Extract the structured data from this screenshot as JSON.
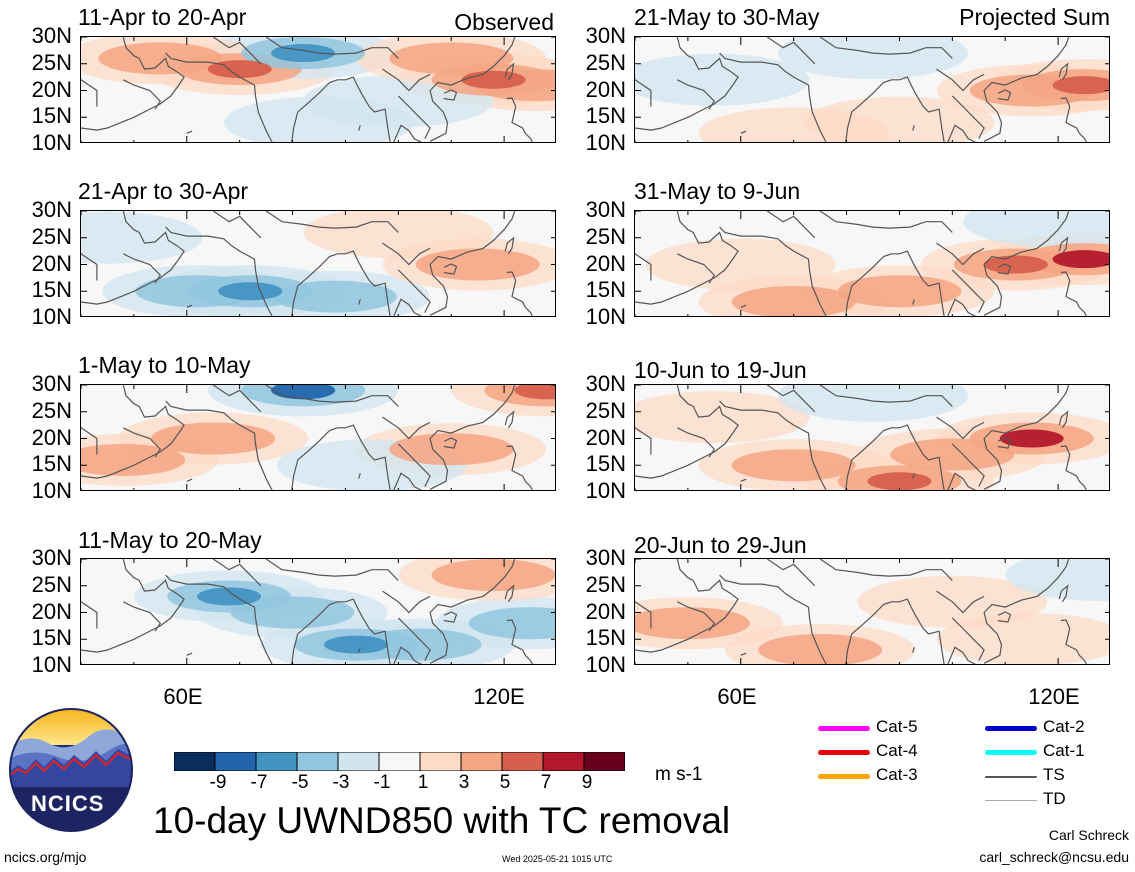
{
  "header": {
    "left_tag": "Observed",
    "right_tag": "Projected Sum"
  },
  "lat_labels": [
    "30N",
    "25N",
    "20N",
    "15N",
    "10N"
  ],
  "lon_labels": [
    "60E",
    "120E"
  ],
  "palette": {
    "-10": "#0a2d5e",
    "-8": "#2166ac",
    "-6": "#4393c3",
    "-4": "#92c5de",
    "-2": "#d1e5f0",
    "0": "#f7f7f7",
    "2": "#fddbc7",
    "4": "#f4a582",
    "6": "#d6604d",
    "8": "#b2182b",
    "10": "#67001f",
    "coast": "#555555"
  },
  "panels": [
    {
      "title": "11-Apr to 20-Apr",
      "column": "observed"
    },
    {
      "title": "21-Apr to 30-Apr",
      "column": "observed"
    },
    {
      "title": "1-May to 10-May",
      "column": "observed"
    },
    {
      "title": "11-May to 20-May",
      "column": "observed"
    },
    {
      "title": "21-May to 30-May",
      "column": "projected"
    },
    {
      "title": "31-May to 9-Jun",
      "column": "projected"
    },
    {
      "title": "10-Jun to 19-Jun",
      "column": "projected"
    },
    {
      "title": "20-Jun to 29-Jun",
      "column": "projected"
    }
  ],
  "colorbar": {
    "labels": [
      "-9",
      "-7",
      "-5",
      "-3",
      "-1",
      "1",
      "3",
      "5",
      "7",
      "9"
    ],
    "colors": [
      "#0a2d5e",
      "#2166ac",
      "#4393c3",
      "#92c5de",
      "#d1e5f0",
      "#f7f7f7",
      "#fddbc7",
      "#f4a582",
      "#d6604d",
      "#b2182b",
      "#67001f"
    ],
    "units": "m s-1"
  },
  "title": "10-day UWND850 with TC removal",
  "legend": {
    "items": [
      {
        "label": "Cat-5",
        "color": "#ff00ff"
      },
      {
        "label": "Cat-4",
        "color": "#e8000b"
      },
      {
        "label": "Cat-3",
        "color": "#ffa500"
      },
      {
        "label": "Cat-2",
        "color": "#0000cd"
      },
      {
        "label": "Cat-1",
        "color": "#00ffff"
      },
      {
        "label": "TS",
        "color": "#555555"
      },
      {
        "label": "TD",
        "color": "#aaaaaa"
      }
    ]
  },
  "logo": {
    "text": "NCICS"
  },
  "footer": {
    "left": "ncics.org/mjo",
    "center": "Wed 2025-05-21 1015 UTC",
    "author": "Carl Schreck",
    "email": "carl_schreck@ncsu.edu"
  },
  "chart_data": {
    "type": "heatmap",
    "title": "10-day UWND850 with TC removal",
    "xlabel": "",
    "ylabel": "",
    "xlim": [
      40,
      130
    ],
    "ylim": [
      10,
      30
    ],
    "x_ticks": [
      "60E",
      "120E"
    ],
    "y_ticks": [
      "30N",
      "25N",
      "20N",
      "15N",
      "10N"
    ],
    "units": "m s-1",
    "levels": [
      -9,
      -7,
      -5,
      -3,
      -1,
      1,
      3,
      5,
      7,
      9
    ],
    "panels": [
      {
        "title": "11-Apr to 20-Apr",
        "features": [
          {
            "lon": 70,
            "lat": 24,
            "value": 5
          },
          {
            "lon": 82,
            "lat": 27,
            "value": -5
          },
          {
            "lon": 118,
            "lat": 22,
            "value": 5
          },
          {
            "lon": 126,
            "lat": 21,
            "value": 3
          },
          {
            "lon": 85,
            "lat": 14,
            "value": -1
          },
          {
            "lon": 55,
            "lat": 26,
            "value": 3
          },
          {
            "lon": 100,
            "lat": 18,
            "value": -1
          },
          {
            "lon": 110,
            "lat": 26,
            "value": 3
          }
        ]
      },
      {
        "title": "21-Apr to 30-Apr",
        "features": [
          {
            "lon": 62,
            "lat": 15,
            "value": -3
          },
          {
            "lon": 72,
            "lat": 15,
            "value": -5
          },
          {
            "lon": 88,
            "lat": 14,
            "value": -3
          },
          {
            "lon": 115,
            "lat": 20,
            "value": 3
          },
          {
            "lon": 45,
            "lat": 25,
            "value": -1
          },
          {
            "lon": 100,
            "lat": 26,
            "value": 1
          }
        ]
      },
      {
        "title": "1-May to 10-May",
        "features": [
          {
            "lon": 82,
            "lat": 29,
            "value": -7
          },
          {
            "lon": 128,
            "lat": 29,
            "value": 5
          },
          {
            "lon": 65,
            "lat": 20,
            "value": 3
          },
          {
            "lon": 110,
            "lat": 18,
            "value": 3
          },
          {
            "lon": 95,
            "lat": 15,
            "value": -1
          },
          {
            "lon": 48,
            "lat": 16,
            "value": 3
          }
        ]
      },
      {
        "title": "11-May to 20-May",
        "features": [
          {
            "lon": 68,
            "lat": 23,
            "value": -5
          },
          {
            "lon": 92,
            "lat": 14,
            "value": -5
          },
          {
            "lon": 104,
            "lat": 14,
            "value": -3
          },
          {
            "lon": 125,
            "lat": 18,
            "value": -3
          },
          {
            "lon": 80,
            "lat": 20,
            "value": -3
          },
          {
            "lon": 118,
            "lat": 27,
            "value": 3
          }
        ]
      },
      {
        "title": "21-May to 30-May",
        "features": [
          {
            "lon": 125,
            "lat": 21,
            "value": 5
          },
          {
            "lon": 115,
            "lat": 20,
            "value": 3
          },
          {
            "lon": 70,
            "lat": 12,
            "value": 1
          },
          {
            "lon": 90,
            "lat": 14,
            "value": 1
          },
          {
            "lon": 55,
            "lat": 22,
            "value": -1
          },
          {
            "lon": 85,
            "lat": 27,
            "value": -1
          }
        ]
      },
      {
        "title": "31-May to 9-Jun",
        "features": [
          {
            "lon": 125,
            "lat": 21,
            "value": 7
          },
          {
            "lon": 112,
            "lat": 20,
            "value": 5
          },
          {
            "lon": 90,
            "lat": 15,
            "value": 3
          },
          {
            "lon": 70,
            "lat": 13,
            "value": 3
          },
          {
            "lon": 60,
            "lat": 20,
            "value": 1
          },
          {
            "lon": 120,
            "lat": 28,
            "value": -1
          }
        ]
      },
      {
        "title": "10-Jun to 19-Jun",
        "features": [
          {
            "lon": 115,
            "lat": 20,
            "value": 7
          },
          {
            "lon": 90,
            "lat": 12,
            "value": 5
          },
          {
            "lon": 70,
            "lat": 15,
            "value": 3
          },
          {
            "lon": 100,
            "lat": 17,
            "value": 3
          },
          {
            "lon": 55,
            "lat": 24,
            "value": 1
          },
          {
            "lon": 85,
            "lat": 28,
            "value": -1
          }
        ]
      },
      {
        "title": "20-Jun to 29-Jun",
        "features": [
          {
            "lon": 50,
            "lat": 18,
            "value": 3
          },
          {
            "lon": 75,
            "lat": 13,
            "value": 3
          },
          {
            "lon": 100,
            "lat": 22,
            "value": 1
          },
          {
            "lon": 115,
            "lat": 15,
            "value": 1
          },
          {
            "lon": 128,
            "lat": 27,
            "value": -1
          }
        ]
      }
    ]
  }
}
